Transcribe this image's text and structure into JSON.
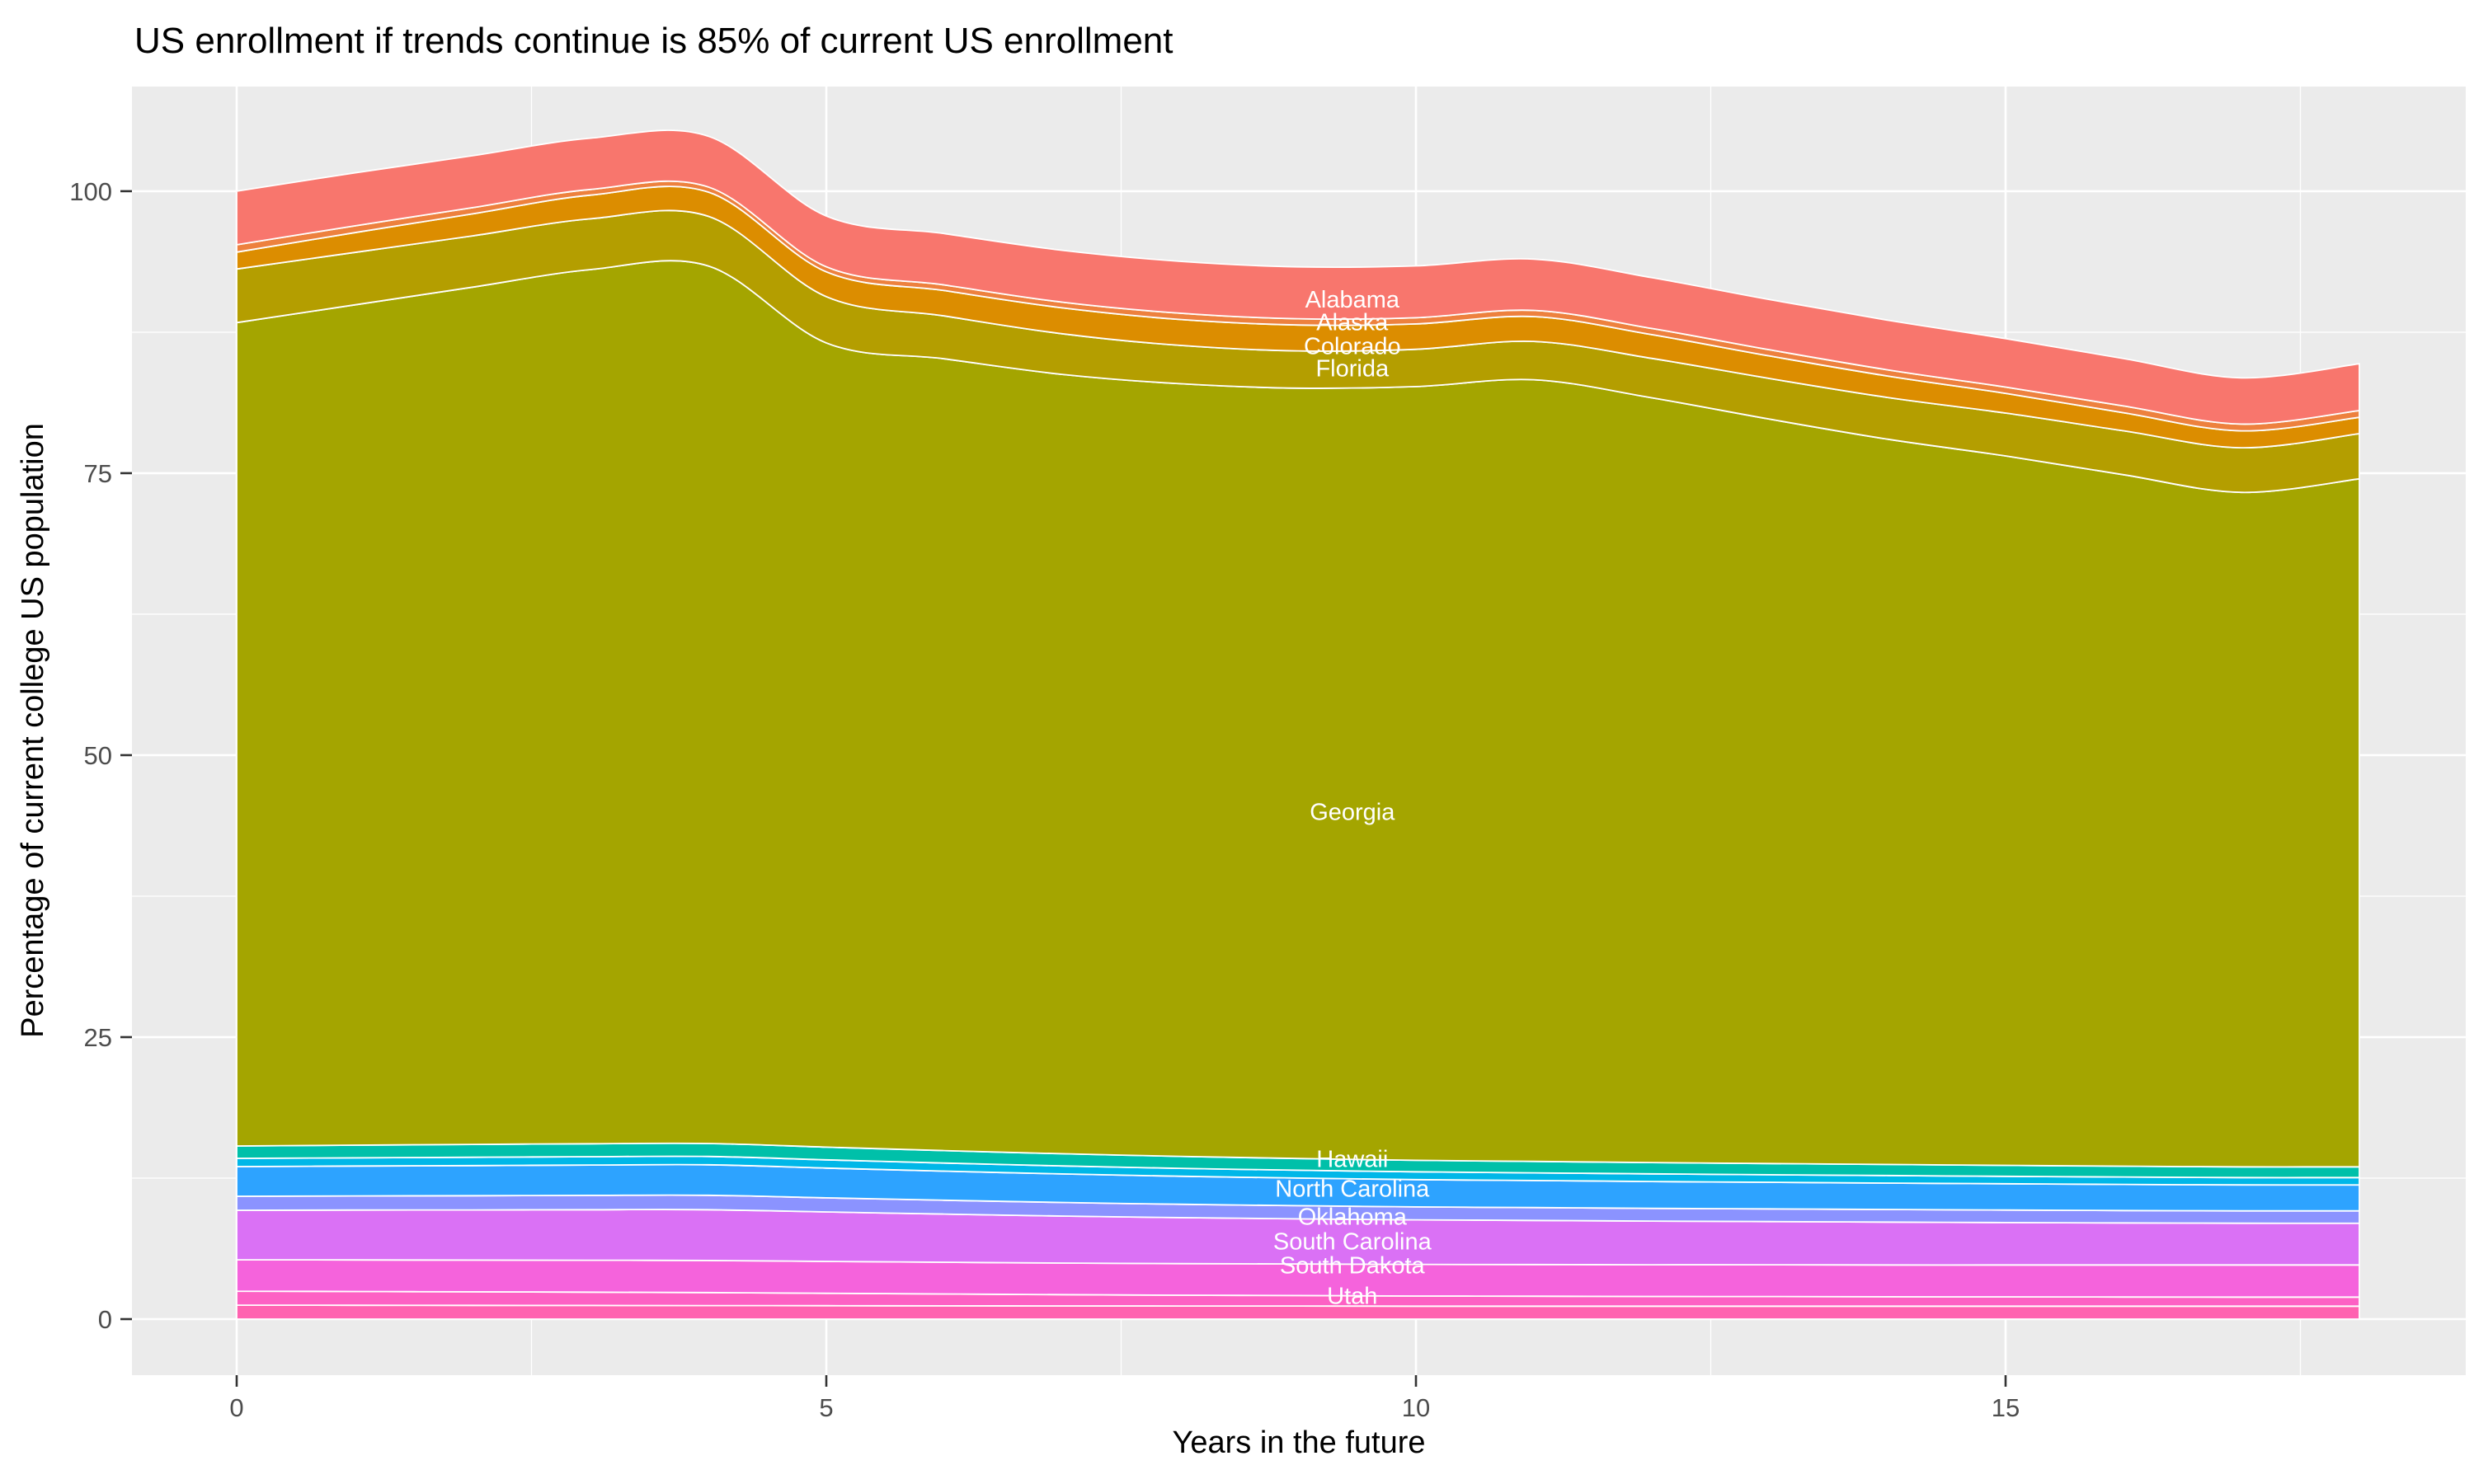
{
  "chart_data": {
    "type": "area",
    "variant": "stacked-area",
    "title": "US enrollment if trends continue is 85% of current US enrollment",
    "xlabel": "Years in the future",
    "ylabel": "Percentage of current college US population",
    "x_ticks": [
      0,
      5,
      10,
      15
    ],
    "y_ticks": [
      0,
      25,
      50,
      75,
      100
    ],
    "x_range": [
      0,
      18
    ],
    "y_axis_shown_range": [
      -5,
      109
    ],
    "grid": "white major and minor gridlines on grey panel",
    "legend": "none",
    "colors": {
      "panel_background": "#EBEBEB",
      "page_background": "#FFFFFF",
      "gridline": "#FFFFFF",
      "axis_text": "#4D4D4D",
      "title_text": "#000000",
      "state_label_text": "#FFFFFF"
    },
    "years": [
      0,
      1,
      2,
      3,
      4,
      5,
      6,
      7,
      8,
      9,
      10,
      11,
      12,
      13,
      14,
      15,
      16,
      17,
      18
    ],
    "stack_order": "top-to-bottom as listed; values are percent of current college US population",
    "series": [
      {
        "id": "alabama",
        "name": "Alabama",
        "color": "#F8766D",
        "values": [
          4.75,
          4.7,
          4.6,
          4.55,
          4.5,
          4.5,
          4.55,
          4.6,
          4.6,
          4.6,
          4.6,
          4.55,
          4.5,
          4.45,
          4.4,
          4.3,
          4.2,
          4.1,
          4.15
        ]
      },
      {
        "id": "alaska",
        "name": "Alaska",
        "color": "#ED813E",
        "values": [
          0.65,
          0.6,
          0.55,
          0.5,
          0.45,
          0.45,
          0.5,
          0.5,
          0.55,
          0.55,
          0.55,
          0.55,
          0.55,
          0.55,
          0.55,
          0.55,
          0.6,
          0.6,
          0.6
        ]
      },
      {
        "id": "colorado",
        "name": "Colorado",
        "color": "#DC8D00",
        "values": [
          1.5,
          1.75,
          1.95,
          2.1,
          2.15,
          2.2,
          2.25,
          2.3,
          2.3,
          2.3,
          2.25,
          2.2,
          2.1,
          2.0,
          1.9,
          1.75,
          1.6,
          1.5,
          1.45
        ]
      },
      {
        "id": "florida",
        "name": "Florida",
        "color": "#B49E00",
        "values": [
          4.75,
          4.65,
          4.55,
          4.5,
          4.4,
          4.1,
          3.8,
          3.6,
          3.4,
          3.3,
          3.3,
          3.4,
          3.5,
          3.6,
          3.7,
          3.8,
          3.9,
          3.95,
          4.0
        ]
      },
      {
        "id": "georgia",
        "name": "Georgia",
        "color": "#A4A500",
        "values": [
          73.0,
          74.5,
          76.0,
          77.5,
          77.8,
          71.3,
          70.2,
          69.1,
          68.5,
          68.3,
          68.6,
          69.3,
          67.8,
          66.0,
          64.3,
          62.9,
          61.3,
          59.8,
          61.0
        ]
      },
      {
        "id": "hawaii",
        "name": "Hawaii",
        "color": "#00C0A9",
        "values": [
          1.1,
          1.12,
          1.14,
          1.15,
          1.15,
          1.13,
          1.1,
          1.08,
          1.06,
          1.04,
          1.02,
          1.01,
          1.0,
          0.99,
          0.98,
          0.97,
          0.96,
          0.95,
          0.95
        ]
      },
      {
        "id": "unlabeled-band-1",
        "name": "",
        "color": "#00B7E8",
        "values": [
          0.73,
          0.73,
          0.74,
          0.74,
          0.74,
          0.73,
          0.72,
          0.71,
          0.7,
          0.69,
          0.69,
          0.68,
          0.68,
          0.67,
          0.67,
          0.66,
          0.66,
          0.65,
          0.65
        ]
      },
      {
        "id": "north-carolina",
        "name": "North Carolina",
        "color": "#2DA3FF",
        "values": [
          2.63,
          2.65,
          2.67,
          2.69,
          2.7,
          2.64,
          2.58,
          2.53,
          2.49,
          2.45,
          2.42,
          2.4,
          2.38,
          2.36,
          2.34,
          2.33,
          2.31,
          2.3,
          2.3
        ]
      },
      {
        "id": "oklahoma",
        "name": "Oklahoma",
        "color": "#8B93FF",
        "values": [
          1.24,
          1.25,
          1.26,
          1.27,
          1.28,
          1.25,
          1.23,
          1.2,
          1.18,
          1.17,
          1.15,
          1.14,
          1.13,
          1.12,
          1.12,
          1.11,
          1.1,
          1.1,
          1.1
        ]
      },
      {
        "id": "south-carolina",
        "name": "South Carolina",
        "color": "#DA71F5",
        "values": [
          4.39,
          4.42,
          4.45,
          4.48,
          4.5,
          4.38,
          4.27,
          4.17,
          4.08,
          4.0,
          3.95,
          3.91,
          3.87,
          3.83,
          3.8,
          3.76,
          3.73,
          3.7,
          3.7
        ]
      },
      {
        "id": "south-dakota",
        "name": "South Dakota",
        "color": "#F563DC",
        "values": [
          2.78,
          2.8,
          2.81,
          2.83,
          2.85,
          2.83,
          2.81,
          2.8,
          2.8,
          2.8,
          2.8,
          2.81,
          2.81,
          2.82,
          2.82,
          2.83,
          2.84,
          2.85,
          2.85
        ]
      },
      {
        "id": "unlabeled-band-2",
        "name": "",
        "color": "#FD61C4",
        "values": [
          1.24,
          1.22,
          1.2,
          1.18,
          1.15,
          1.1,
          1.05,
          1.0,
          0.96,
          0.93,
          0.9,
          0.88,
          0.86,
          0.85,
          0.83,
          0.82,
          0.81,
          0.8,
          0.8
        ]
      },
      {
        "id": "utah",
        "name": "Utah",
        "color": "#FF62B0",
        "values": [
          1.24,
          1.23,
          1.22,
          1.21,
          1.2,
          1.19,
          1.18,
          1.17,
          1.16,
          1.16,
          1.15,
          1.15,
          1.15,
          1.15,
          1.15,
          1.15,
          1.15,
          1.15,
          1.15
        ]
      }
    ],
    "annotations": [
      {
        "text": "Alabama",
        "x": 9.46,
        "y": 90.4
      },
      {
        "text": "Alaska",
        "x": 9.46,
        "y": 88.4
      },
      {
        "text": "Colorado",
        "x": 9.46,
        "y": 86.3
      },
      {
        "text": "Florida",
        "x": 9.46,
        "y": 84.3
      },
      {
        "text": "Georgia",
        "x": 9.46,
        "y": 45.0
      },
      {
        "text": "Hawaii",
        "x": 9.46,
        "y": 14.2
      },
      {
        "text": "North Carolina",
        "x": 9.46,
        "y": 11.6
      },
      {
        "text": "Oklahoma",
        "x": 9.46,
        "y": 9.1
      },
      {
        "text": "South Carolina",
        "x": 9.46,
        "y": 6.9
      },
      {
        "text": "South Dakota",
        "x": 9.46,
        "y": 4.8
      },
      {
        "text": "Utah",
        "x": 9.46,
        "y": 2.1
      }
    ]
  }
}
